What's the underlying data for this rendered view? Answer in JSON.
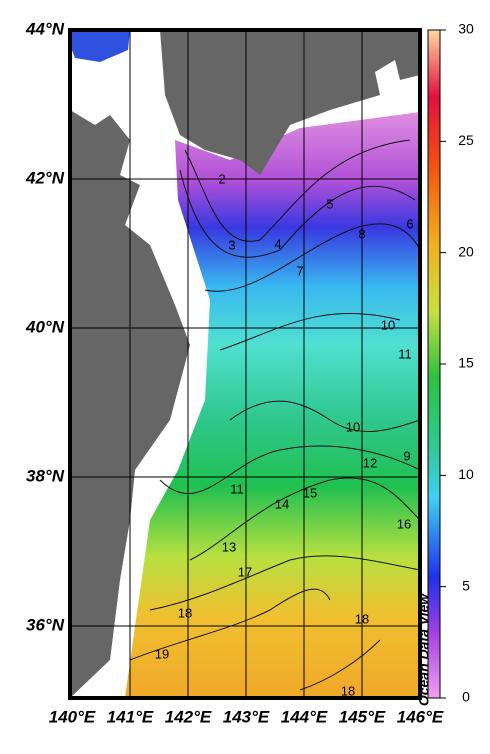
{
  "map": {
    "lat_labels": [
      "44°N",
      "42°N",
      "40°N",
      "38°N",
      "36°N"
    ],
    "lon_labels": [
      "140°E",
      "141°E",
      "142°E",
      "143°E",
      "144°E",
      "145°E",
      "146°E"
    ],
    "contour_labels": [
      2,
      3,
      4,
      5,
      6,
      7,
      8,
      10,
      11,
      10,
      9,
      12,
      11,
      14,
      15,
      16,
      13,
      17,
      18,
      18,
      19,
      18
    ],
    "colorbar": {
      "range": [
        0,
        30
      ],
      "ticks": [
        0,
        5,
        10,
        15,
        20,
        25,
        30
      ]
    },
    "watermark": "Ocean Data View"
  }
}
